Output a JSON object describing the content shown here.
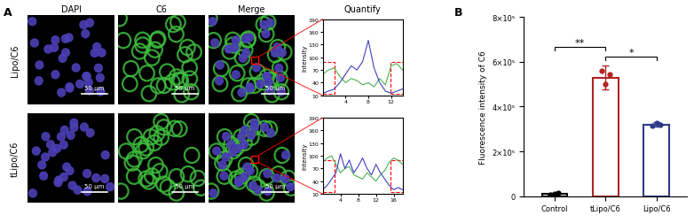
{
  "panel_labels": [
    "A",
    "B"
  ],
  "image_grid": {
    "columns": [
      "DAPI",
      "C6",
      "Merge",
      "Quantify"
    ],
    "rows": [
      "Lipo/C6",
      "tLipo/C6"
    ],
    "scale_bar": "50 μm"
  },
  "chart_data": [
    {
      "type": "line",
      "y_label": "Intensity",
      "x": [
        0,
        1,
        2,
        3,
        4,
        5,
        6,
        7,
        8,
        9,
        10,
        11,
        12,
        13,
        14
      ],
      "series": [
        {
          "name": "C6",
          "color": "#4caf50",
          "values": [
            60,
            70,
            75,
            55,
            40,
            50,
            45,
            35,
            40,
            30,
            50,
            35,
            80,
            85,
            70
          ]
        },
        {
          "name": "DAPI",
          "color": "#3f3fbf",
          "values": [
            15,
            20,
            25,
            40,
            60,
            80,
            70,
            90,
            140,
            75,
            40,
            20,
            15,
            20,
            25
          ]
        }
      ],
      "xlim": [
        0,
        14
      ],
      "xticks": [
        4,
        8,
        12
      ],
      "ylim": [
        10,
        190
      ],
      "yticks": [
        10,
        40,
        70,
        100,
        130,
        160,
        190
      ]
    },
    {
      "type": "line",
      "y_label": "Intensity",
      "x": [
        0,
        1,
        2,
        3,
        4,
        5,
        6,
        7,
        8,
        9,
        10,
        11,
        12,
        13,
        14,
        15,
        16,
        17,
        18
      ],
      "series": [
        {
          "name": "C6",
          "color": "#4caf50",
          "values": [
            85,
            95,
            100,
            80,
            60,
            70,
            75,
            55,
            50,
            45,
            60,
            50,
            40,
            55,
            65,
            85,
            95,
            90,
            80
          ]
        },
        {
          "name": "DAPI",
          "color": "#3f3fbf",
          "values": [
            20,
            30,
            45,
            60,
            105,
            70,
            90,
            60,
            75,
            95,
            70,
            55,
            80,
            60,
            45,
            30,
            20,
            25,
            20
          ]
        }
      ],
      "xlim": [
        0,
        18
      ],
      "xticks": [
        4,
        8,
        12,
        16
      ],
      "ylim": [
        10,
        190
      ],
      "yticks": [
        10,
        40,
        70,
        100,
        130,
        160,
        190
      ]
    },
    {
      "type": "bar",
      "y_label": "Fluorescence intensity of C6",
      "categories": [
        "Control",
        "tLipo/C6",
        "Lipo/C6"
      ],
      "values": [
        10000,
        530000,
        320000
      ],
      "errors": [
        5000,
        55000,
        10000
      ],
      "points": [
        [
          5000,
          10000,
          15000
        ],
        [
          560000,
          500000,
          545000
        ],
        [
          315000,
          325000,
          320000
        ]
      ],
      "colors": [
        "#000000",
        "#b22222",
        "#2e3a87"
      ],
      "marker": "o",
      "ylim": [
        0,
        800000
      ],
      "yticks": [
        0,
        {
          "value": 200000,
          "label": "2×10⁵"
        },
        {
          "value": 400000,
          "label": "4×10⁵"
        },
        {
          "value": 600000,
          "label": "6×10⁵"
        },
        {
          "value": 800000,
          "label": "8×10⁵"
        }
      ],
      "significance": [
        {
          "between": [
            "Control",
            "tLipo/C6"
          ],
          "label": "**"
        },
        {
          "between": [
            "tLipo/C6",
            "Lipo/C6"
          ],
          "label": "*"
        }
      ]
    }
  ]
}
